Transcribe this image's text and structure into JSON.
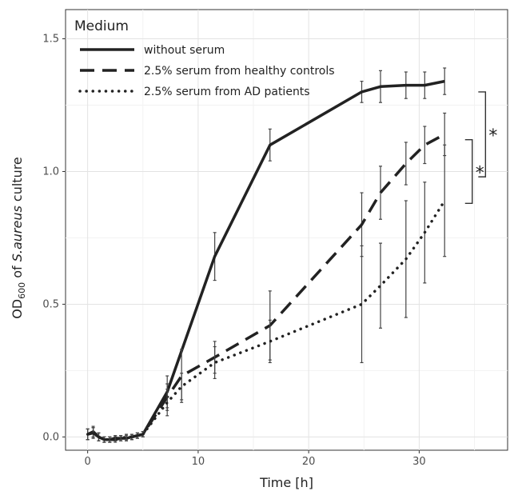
{
  "chart_data": {
    "type": "line",
    "xlabel": "Time [h]",
    "ylabel_main": "OD",
    "ylabel_sub": "600",
    "ylabel_of": " of ",
    "ylabel_italic": "S.aureus",
    "ylabel_tail": " culture",
    "xlim": [
      -2,
      38
    ],
    "ylim": [
      -0.05,
      1.61
    ],
    "x_ticks": [
      0,
      10,
      20,
      30
    ],
    "x_tick_labels": [
      "0",
      "10",
      "20",
      "30"
    ],
    "y_ticks": [
      0.0,
      0.5,
      1.0,
      1.5
    ],
    "y_tick_labels": [
      "0.0",
      "0.5",
      "1.0",
      "1.5"
    ],
    "grid": true,
    "legend": {
      "title": "Medium",
      "position": "top-left"
    },
    "series": [
      {
        "name": "without serum",
        "style": "solid",
        "x": [
          0,
          0.5,
          1,
          1.5,
          2,
          2.5,
          3,
          3.5,
          4,
          4.5,
          5,
          7.2,
          11.5,
          16.5,
          24.8,
          26.5,
          28.8,
          30.5,
          32.3
        ],
        "y": [
          0.01,
          0.02,
          0.0,
          -0.01,
          -0.01,
          -0.01,
          -0.005,
          -0.005,
          0.0,
          0.005,
          0.01,
          0.17,
          0.68,
          1.1,
          1.3,
          1.32,
          1.325,
          1.325,
          1.34
        ],
        "err": [
          0.02,
          0.02,
          0.015,
          0.01,
          0.01,
          0.01,
          0.01,
          0.01,
          0.01,
          0.01,
          0.01,
          0.06,
          0.09,
          0.06,
          0.04,
          0.06,
          0.05,
          0.05,
          0.05
        ]
      },
      {
        "name": "2.5% serum from healthy controls",
        "style": "dashed",
        "x": [
          0,
          0.5,
          1,
          1.5,
          2,
          2.5,
          3,
          3.5,
          4,
          4.5,
          5,
          7.2,
          8.5,
          11.5,
          16.5,
          24.8,
          26.5,
          28.8,
          30.5,
          32.3
        ],
        "y": [
          0.01,
          0.015,
          0.0,
          -0.01,
          -0.01,
          -0.005,
          -0.005,
          0.0,
          0.0,
          0.005,
          0.01,
          0.15,
          0.23,
          0.3,
          0.42,
          0.8,
          0.92,
          1.03,
          1.1,
          1.14
        ],
        "err": [
          0.02,
          0.02,
          0.015,
          0.01,
          0.01,
          0.01,
          0.01,
          0.01,
          0.01,
          0.01,
          0.01,
          0.05,
          0.1,
          0.06,
          0.13,
          0.12,
          0.1,
          0.08,
          0.07,
          0.08
        ]
      },
      {
        "name": "2.5% serum from AD patients",
        "style": "dotted",
        "x": [
          0,
          0.5,
          1,
          1.5,
          2,
          2.5,
          3,
          3.5,
          4,
          4.5,
          5,
          7.2,
          8.5,
          11.5,
          16.5,
          24.8,
          26.5,
          28.8,
          30.5,
          32.3
        ],
        "y": [
          0.01,
          0.015,
          0.0,
          -0.01,
          -0.01,
          -0.005,
          -0.005,
          0.0,
          0.0,
          0.005,
          0.01,
          0.13,
          0.19,
          0.28,
          0.36,
          0.5,
          0.57,
          0.67,
          0.77,
          0.89
        ],
        "err": [
          0.02,
          0.02,
          0.015,
          0.01,
          0.01,
          0.01,
          0.01,
          0.01,
          0.01,
          0.01,
          0.01,
          0.05,
          0.05,
          0.06,
          0.08,
          0.22,
          0.16,
          0.22,
          0.19,
          0.21
        ]
      }
    ],
    "annotations": [
      {
        "type": "bracket",
        "x": 34.8,
        "y_from": 0.88,
        "y_to": 1.12,
        "label": "*"
      },
      {
        "type": "bracket",
        "x": 36.0,
        "y_from": 0.98,
        "y_to": 1.3,
        "label": "*"
      }
    ]
  }
}
